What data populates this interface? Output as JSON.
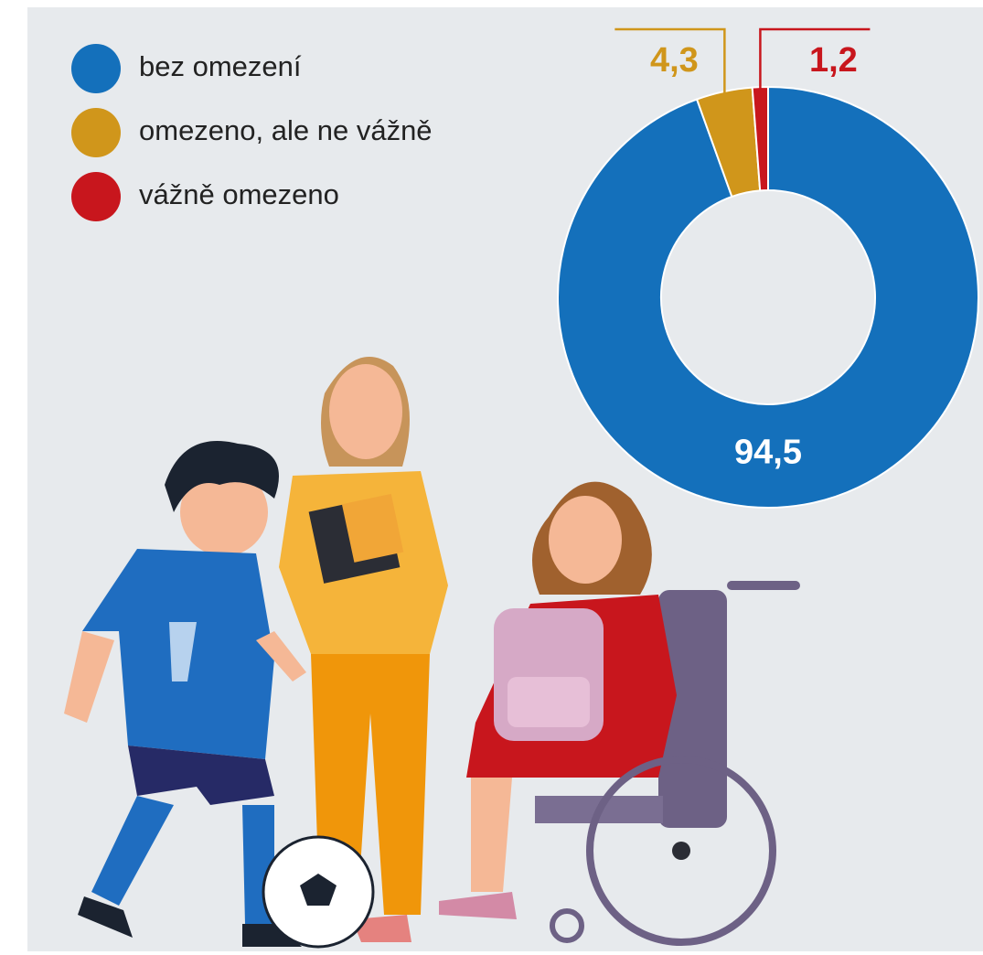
{
  "chart_data": {
    "type": "pie",
    "donut": true,
    "categories": [
      "bez omezení",
      "omezeno, ale ne vážně",
      "vážně omezeno"
    ],
    "values": [
      94.5,
      4.3,
      1.2
    ],
    "value_labels": [
      "94,5",
      "4,3",
      "1,2"
    ],
    "colors": [
      "#1470bb",
      "#d0961b",
      "#c8161d"
    ]
  }
}
